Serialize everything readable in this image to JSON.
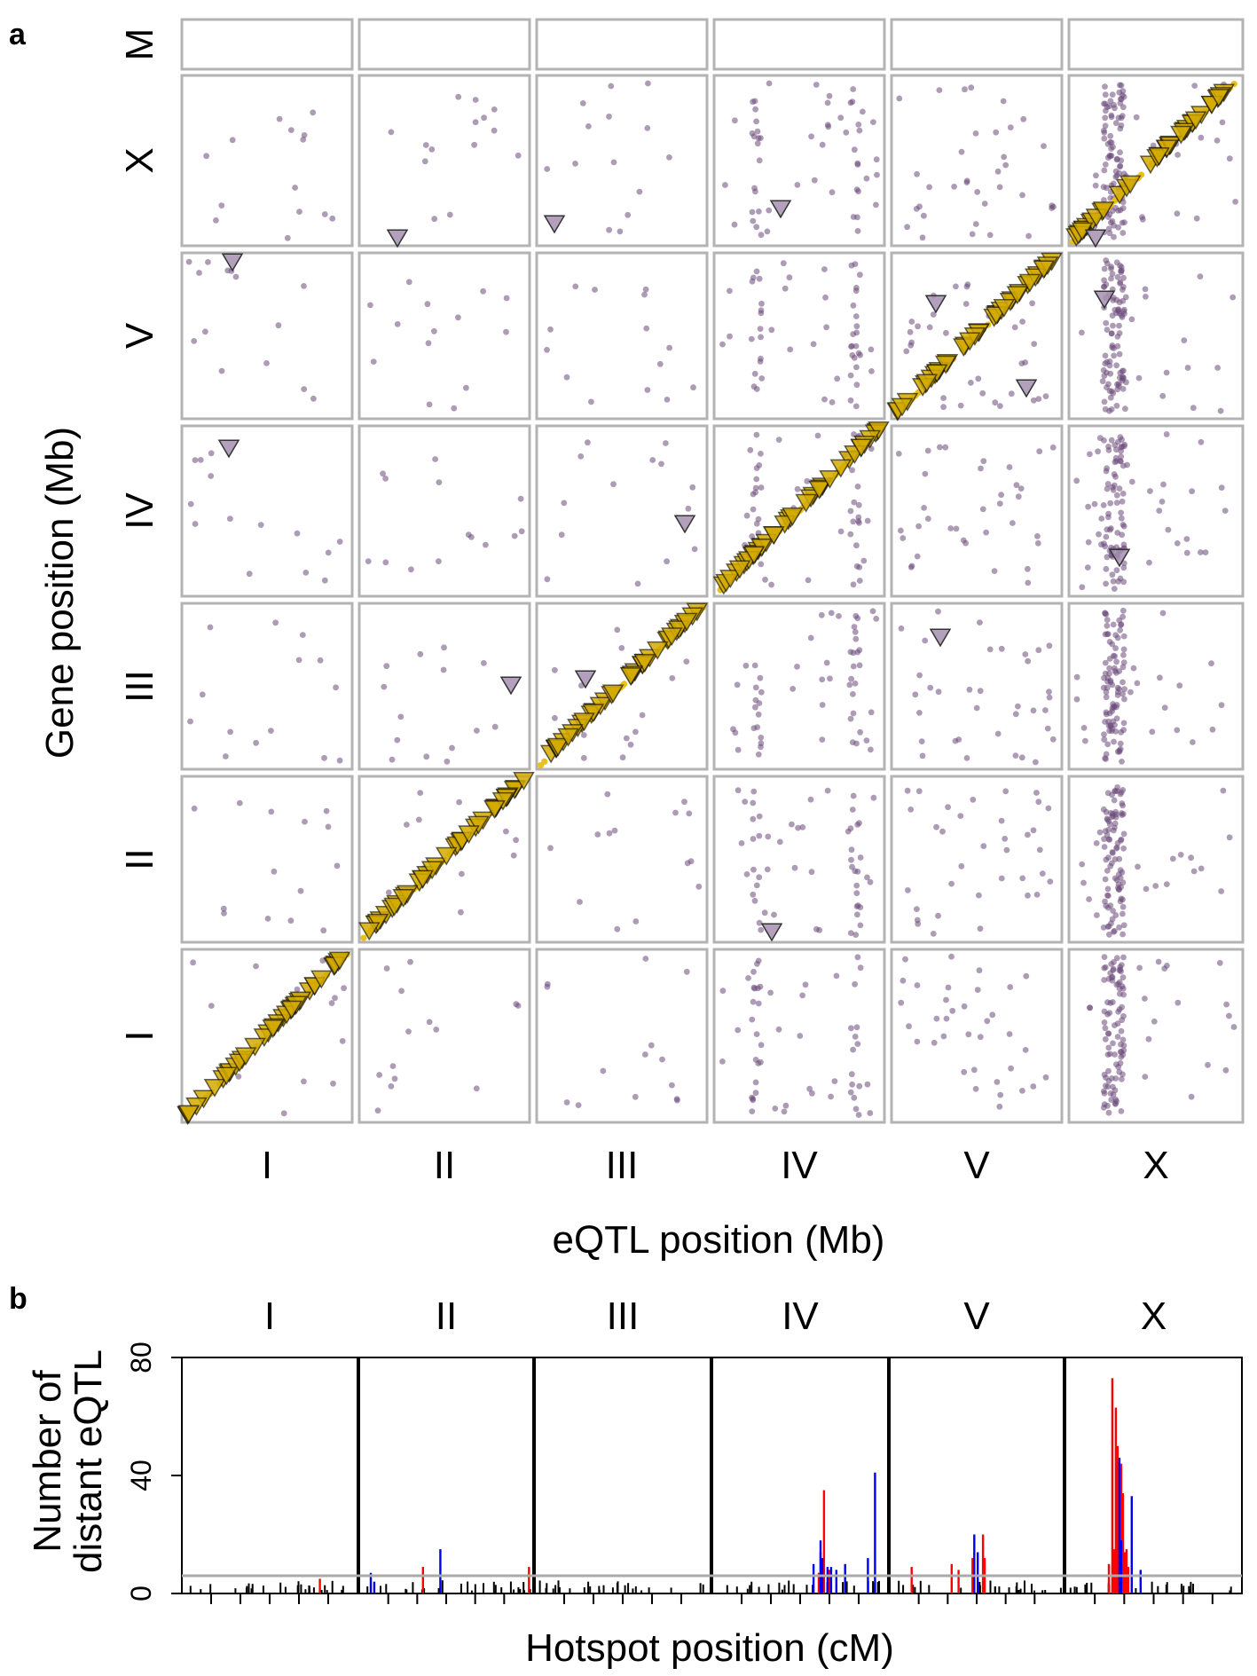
{
  "panel_a": {
    "label": "a",
    "xlabel": "eQTL position (Mb)",
    "ylabel": "Gene position (Mb)",
    "column_chromosomes": [
      "I",
      "II",
      "III",
      "IV",
      "V",
      "X"
    ],
    "row_chromosomes": [
      "M",
      "X",
      "V",
      "IV",
      "III",
      "II",
      "I"
    ]
  },
  "panel_b": {
    "label": "b",
    "xlabel": "Hotspot position (cM)",
    "ylabel_line1": "Number of",
    "ylabel_line2": "distant eQTL",
    "column_chromosomes": [
      "I",
      "II",
      "III",
      "IV",
      "V",
      "X"
    ],
    "yticks": [
      "0",
      "40",
      "80"
    ]
  },
  "colors": {
    "grid_border": "#b3b3b3",
    "distant_eqtl": "#6b4a7a",
    "local_eqtl": "#e8c21a",
    "distant_triangle": "#a58fb0",
    "local_triangle": "#d4aa00",
    "hotspot_red": "#ff0000",
    "hotspot_blue": "#0000ee",
    "hotspot_black": "#000000",
    "threshold_line": "#aaaaaa"
  },
  "chart_data": [
    {
      "type": "scatter",
      "title": "",
      "xlabel": "eQTL position (Mb)",
      "ylabel": "Gene position (Mb)",
      "facet_columns": [
        "I",
        "II",
        "III",
        "IV",
        "V",
        "X"
      ],
      "facet_rows": [
        "M",
        "X",
        "V",
        "IV",
        "III",
        "II",
        "I"
      ],
      "grid": true,
      "series": [
        {
          "marker": "dot",
          "color": "#e8c21a",
          "description_visible": false
        },
        {
          "marker": "dot",
          "color": "#6b4a7a"
        },
        {
          "marker": "triangle",
          "color": "#d4aa00"
        },
        {
          "marker": "triangle",
          "color": "#a58fb0"
        }
      ]
    },
    {
      "type": "bar",
      "title": "",
      "xlabel": "Hotspot position (cM)",
      "ylabel": "Number of distant eQTL",
      "ylim": [
        0,
        80
      ],
      "yticks": [
        0,
        40,
        80
      ],
      "threshold": 6,
      "facets": [
        "I",
        "II",
        "III",
        "IV",
        "V",
        "X"
      ],
      "series": [
        {
          "color": "#ff0000",
          "x_fraction": [
            0.78,
            0.36,
            0.97,
            0.6,
            0.63,
            0.61,
            0.66,
            0.12,
            0.35,
            0.39,
            0.47,
            0.53,
            0.54,
            0.24,
            0.26,
            0.27,
            0.28,
            0.29,
            0.31,
            0.32,
            0.33,
            0.34,
            0.35
          ],
          "values": [
            5,
            9,
            9,
            7,
            35,
            14,
            8,
            9,
            10,
            8,
            12,
            20,
            12,
            10,
            73,
            15,
            63,
            50,
            44,
            34,
            14,
            15,
            9
          ]
        },
        {
          "color": "#0000ee",
          "x_fraction": [
            0.06,
            0.08,
            0.46,
            0.57,
            0.61,
            0.62,
            0.65,
            0.67,
            0.7,
            0.75,
            0.88,
            0.92,
            0.48,
            0.5,
            0.3,
            0.31,
            0.37,
            0.42
          ],
          "values": [
            7,
            4,
            15,
            10,
            18,
            12,
            9,
            9,
            8,
            10,
            12,
            41,
            20,
            14,
            46,
            18,
            33,
            8
          ]
        }
      ]
    }
  ]
}
